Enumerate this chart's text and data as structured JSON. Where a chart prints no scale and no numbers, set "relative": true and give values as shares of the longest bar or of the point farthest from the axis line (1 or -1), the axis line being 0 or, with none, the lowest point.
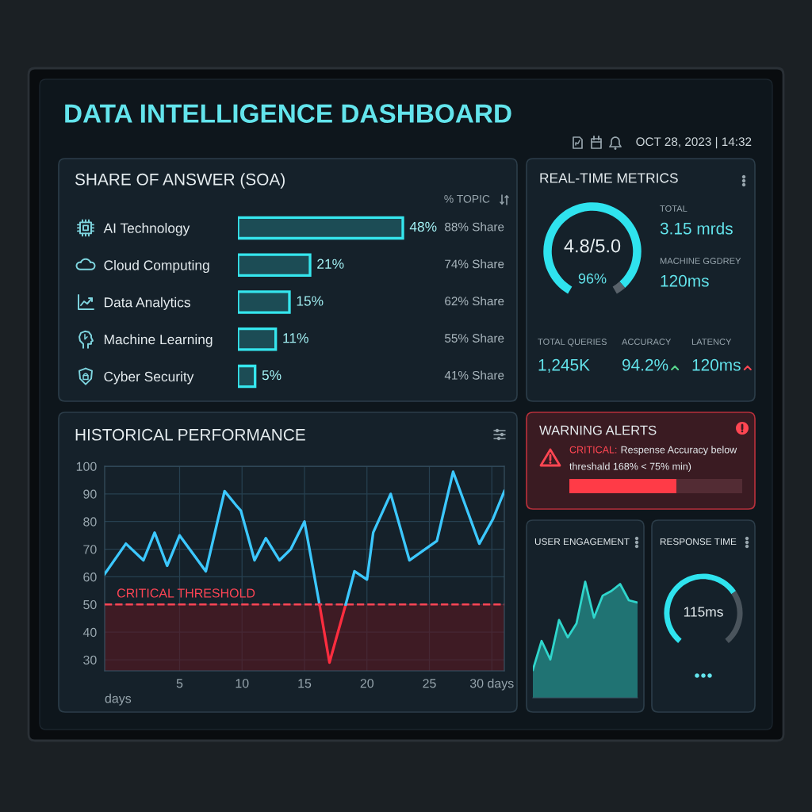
{
  "chart_data": [
    {
      "type": "other",
      "title": "DATA INTELLIGENCE DASHBOARD",
      "annotations": [
        "OCT 28, 2023 | 14:32"
      ]
    },
    {
      "type": "bar",
      "orientation": "horizontal",
      "title": "SHARE OF ANSWER (SOA)",
      "categories": [
        "AI Technology",
        "Cloud Computing",
        "Data Analytics",
        "Machine Learning",
        "Cyber Security"
      ],
      "values": [
        48,
        21,
        15,
        11,
        5
      ],
      "color": "#35e6ee",
      "value_labels": [
        "48%",
        "21%",
        "15%",
        "11%",
        "5%"
      ],
      "tick_labels": "y",
      "annotations": [
        "% TOPIC",
        "88% Share",
        "74% Share",
        "62% Share",
        "55% Share",
        "41% Share"
      ]
    },
    {
      "type": "donut",
      "title": "REAL-TIME METRICS",
      "categories": [
        null,
        null
      ],
      "values": [
        96,
        4
      ],
      "colors": [
        "#2fe3ee",
        "#59626a"
      ],
      "annotations": [
        "4.8/5.0",
        "96%"
      ]
    },
    {
      "type": "other",
      "annotations": [
        "TOTAL",
        "3.15 mrds",
        "MACHINE GGDREY",
        "120ms",
        "TOTAL QUERIES",
        "1,245K",
        "ACCURACY",
        "94.2%",
        "LATENCY",
        "120ms"
      ]
    },
    {
      "type": "line",
      "title": "HISTORICAL PERFORMANCE",
      "xlabel": "days",
      "xlim": [
        -1,
        31
      ],
      "xticks": [
        5,
        10,
        15,
        20,
        25,
        {
          "value": 30,
          "label": "30 days"
        }
      ],
      "ylim": [
        26,
        100
      ],
      "yticks": [
        30,
        40,
        50,
        60,
        70,
        80,
        90,
        100
      ],
      "grid": true,
      "series": [
        {
          "color": "#3cc8ff",
          "x": [
            -1,
            0.7,
            2.1,
            3,
            4,
            5,
            7.1,
            8.6,
            9.5,
            9.9,
            11,
            11.9,
            13,
            13.9,
            15,
            16.2
          ],
          "values": [
            61,
            72,
            66,
            76,
            64,
            75,
            62,
            91,
            86,
            84,
            66,
            74,
            66,
            70,
            80,
            50
          ]
        },
        {
          "color": "#ff2d3f",
          "x": [
            16.2,
            17,
            18.3
          ],
          "values": [
            50,
            29,
            50
          ]
        },
        {
          "color": "#3cc8ff",
          "x": [
            18.3,
            19,
            20,
            20.5,
            21.9,
            23.4,
            25.6,
            26.9,
            29,
            30.1,
            31
          ],
          "values": [
            50,
            62,
            59,
            76,
            90,
            66,
            73,
            98,
            72,
            81,
            91
          ]
        }
      ],
      "ref_lines": [
        {
          "axis": "y",
          "value": 50,
          "label": "CRITICAL THRESHOLD",
          "color": "#ff4555",
          "line_style": "dashed"
        }
      ],
      "bands": [
        {
          "axis": "y",
          "from": 26,
          "to": 50,
          "color": "#5a1822"
        }
      ]
    },
    {
      "type": "bar",
      "orientation": "horizontal",
      "stacked": true,
      "relative": true,
      "tick_labels": false,
      "title": "WARNING ALERTS",
      "categories": [
        null
      ],
      "series": [
        {
          "color": "#ff3b47",
          "values": [
            0.62
          ]
        },
        {
          "color": "#532c34",
          "values": [
            0.38
          ]
        }
      ],
      "annotations": [
        "CRITICAL:",
        "Respense Accuracy below",
        "threshald 168% < 75% min)"
      ]
    },
    {
      "type": "area",
      "relative": true,
      "tick_labels": false,
      "title": "USER ENGAGEMENT",
      "categories": [
        null,
        null,
        null,
        null,
        null,
        null,
        null,
        null,
        null,
        null,
        null,
        null,
        null
      ],
      "values": [
        0.24,
        0.49,
        0.33,
        0.67,
        0.52,
        0.64,
        1,
        0.69,
        0.88,
        0.92,
        0.98,
        0.84,
        0.82
      ],
      "color": "#2fd6cc"
    },
    {
      "type": "donut",
      "title": "RESPONSE TIME",
      "categories": [
        null,
        null
      ],
      "values": [
        70,
        30
      ],
      "colors": [
        "#2fe3ee",
        "#4a545c"
      ],
      "annotations": [
        "115ms"
      ]
    }
  ]
}
